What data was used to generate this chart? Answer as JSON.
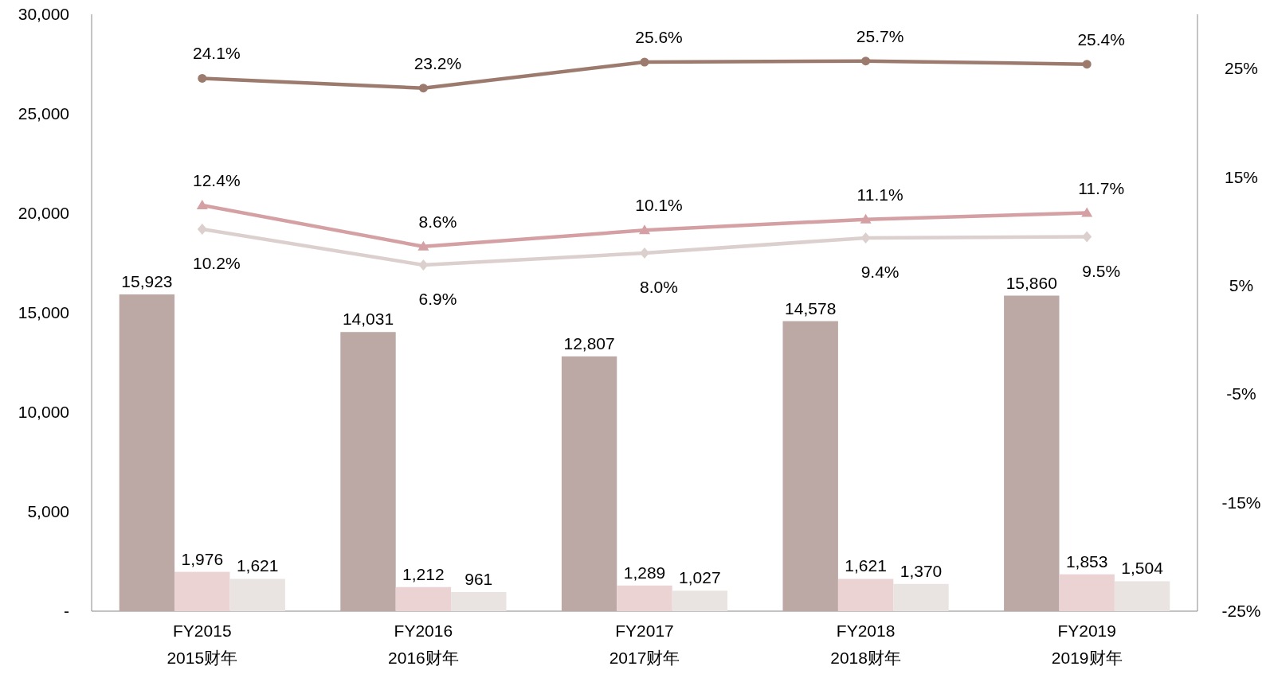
{
  "chart_data": {
    "type": "bar",
    "categories": [
      "FY2015\n2015财年",
      "FY2016\n2016财年",
      "FY2017\n2017财年",
      "FY2018\n2018财年",
      "FY2019\n2019财年"
    ],
    "series": [
      {
        "color": "#bca8a5",
        "values": [
          15923,
          14031,
          12807,
          14578,
          15860
        ],
        "value_labels": [
          "15,923",
          "14,031",
          "12,807",
          "14,578",
          "15,860"
        ]
      },
      {
        "color": "#ecd3d3",
        "values": [
          1976,
          1212,
          1289,
          1621,
          1853
        ],
        "value_labels": [
          "1,976",
          "1,212",
          "1,289",
          "1,621",
          "1,853"
        ]
      },
      {
        "color": "#e9e4e2",
        "values": [
          1621,
          961,
          1027,
          1370,
          1504
        ],
        "value_labels": [
          "1,621",
          "961",
          "1,027",
          "1,370",
          "1,504"
        ]
      },
      {
        "type": "line",
        "axis": "y2",
        "color": "#9c7b6e",
        "marker": "circle",
        "values": [
          24.1,
          23.2,
          25.6,
          25.7,
          25.4
        ],
        "value_labels": [
          "24.1%",
          "23.2%",
          "25.6%",
          "25.7%",
          "25.4%"
        ]
      },
      {
        "type": "line",
        "axis": "y2",
        "color": "#d4a0a3",
        "marker": "triangle",
        "values": [
          12.4,
          8.6,
          10.1,
          11.1,
          11.7
        ],
        "value_labels": [
          "12.4%",
          "8.6%",
          "10.1%",
          "11.1%",
          "11.7%"
        ]
      },
      {
        "type": "line",
        "axis": "y2",
        "color": "#dcd0cf",
        "marker": "diamond",
        "values": [
          10.2,
          6.9,
          8.0,
          9.4,
          9.5
        ],
        "value_labels": [
          "10.2%",
          "6.9%",
          "8.0%",
          "9.4%",
          "9.5%"
        ]
      }
    ],
    "ylim": [
      0,
      30000
    ],
    "yticks": [
      {
        "value": 0,
        "label": "-"
      },
      {
        "value": 5000,
        "label": "5,000"
      },
      {
        "value": 10000,
        "label": "10,000"
      },
      {
        "value": 15000,
        "label": "15,000"
      },
      {
        "value": 20000,
        "label": "20,000"
      },
      {
        "value": 25000,
        "label": "25,000"
      },
      {
        "value": 30000,
        "label": "30,000"
      }
    ],
    "y2lim": [
      -25,
      30
    ],
    "y2ticks": [
      {
        "value": -25,
        "label": "-25%"
      },
      {
        "value": -15,
        "label": "-15%"
      },
      {
        "value": -5,
        "label": "-5%"
      },
      {
        "value": 5,
        "label": "5%"
      },
      {
        "value": 15,
        "label": "15%"
      },
      {
        "value": 25,
        "label": "25%"
      }
    ],
    "data_labels": true,
    "grid": false
  }
}
